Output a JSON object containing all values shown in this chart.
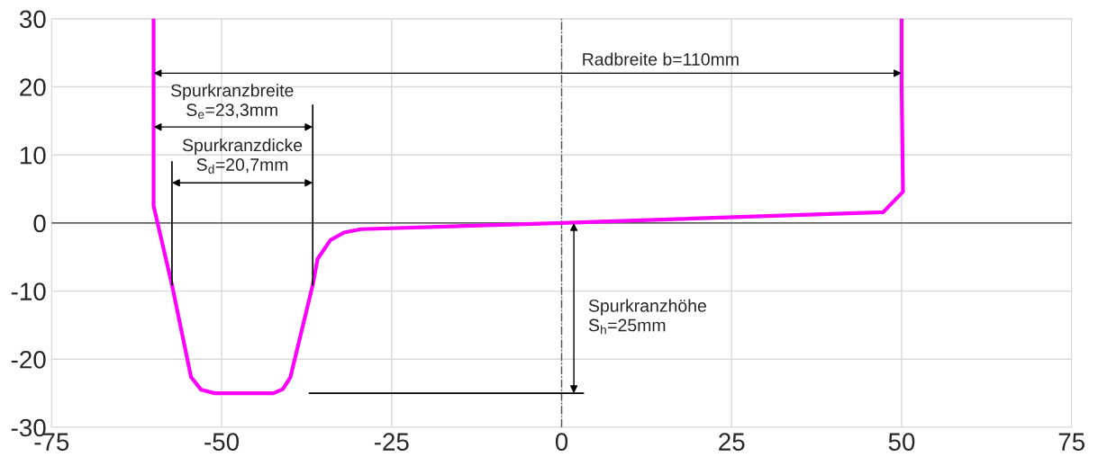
{
  "chart_data": {
    "type": "line",
    "x": [
      -60,
      -60,
      -57.3,
      -54.5,
      -53,
      -51,
      -50.7,
      -42.4,
      -41,
      -39.9,
      -36.6,
      -35.9,
      -34,
      -32,
      -29.5,
      0,
      47.3,
      50.2,
      50,
      50
    ],
    "series": [
      {
        "color": "#ff00ff",
        "values": [
          30,
          2.5,
          -9.1,
          -22.6,
          -24.5,
          -25,
          -25,
          -25,
          -24.4,
          -22.7,
          -9.1,
          -5.3,
          -2.5,
          -1.4,
          -0.9,
          0,
          1.6,
          4.6,
          20,
          30
        ]
      }
    ],
    "xlim": [
      -75,
      75
    ],
    "xticks": [
      -75,
      -50,
      -25,
      0,
      25,
      50,
      75
    ],
    "ylim": [
      -30,
      30
    ],
    "yticks": [
      -30,
      -20,
      -10,
      0,
      10,
      20,
      30
    ],
    "grid": true,
    "marker": "none",
    "line_style": "solid",
    "ref_lines": [
      {
        "axis": "x",
        "value": 0,
        "color": "#555555",
        "line_style": "dashdot"
      },
      {
        "axis": "y",
        "value": 0,
        "color": "#333333",
        "line_style": "solid"
      }
    ],
    "annotations": [
      "Radbreite b=110mm",
      {
        "text": "Spurkranzbreite\nS$_{e}$=23,3mm",
        "x": -36.6,
        "y": -9.1
      },
      {
        "text": "Spurkranzdicke\nS$_{d}$=20,7mm",
        "x": -57.3,
        "y": -9.1
      },
      "Spurkranzhöhe\nS$_{h}$=25mm"
    ]
  }
}
